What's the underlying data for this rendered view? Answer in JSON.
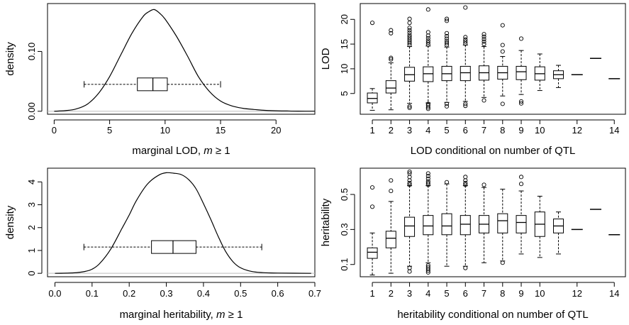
{
  "chart_data": [
    {
      "type": "density+boxplot",
      "xlabel": "marginal LOD, m ≥ 1",
      "xlabel_plain": "marginal LOD, ",
      "xlabel_var": "m",
      "xlabel_cond": " ≥ 1",
      "ylabel": "density",
      "xlim": [
        -0.6,
        23.5
      ],
      "ylim": [
        -0.005,
        0.18
      ],
      "xticks": [
        0,
        5,
        10,
        15,
        20
      ],
      "xtick_labels": [
        "0",
        "5",
        "10",
        "15",
        "20"
      ],
      "yticks": [
        0.0,
        0.1
      ],
      "ytick_labels": [
        "0.00",
        "0.10"
      ],
      "density": {
        "x": [
          0,
          1,
          2,
          3,
          4,
          5,
          6,
          7,
          8,
          8.5,
          9,
          9.5,
          10,
          11,
          12,
          13,
          14,
          15,
          16,
          17,
          18,
          19,
          20,
          21,
          22,
          23.5
        ],
        "y": [
          0,
          0.001,
          0.004,
          0.012,
          0.03,
          0.058,
          0.094,
          0.13,
          0.158,
          0.166,
          0.17,
          0.164,
          0.154,
          0.126,
          0.093,
          0.058,
          0.033,
          0.017,
          0.009,
          0.005,
          0.003,
          0.0015,
          0.0008,
          0.0004,
          0.0002,
          0.0001
        ]
      },
      "box": {
        "whisker_low": 2.7,
        "q1": 7.5,
        "median": 8.9,
        "q3": 10.2,
        "whisker_high": 15.0,
        "y_level": 0.045
      }
    },
    {
      "type": "boxplot",
      "xlabel": "LOD conditional on number of QTL",
      "ylabel": "LOD",
      "ylim": [
        0.8,
        23.2
      ],
      "yticks": [
        5,
        10,
        15,
        20
      ],
      "ytick_labels": [
        "5",
        "10",
        "15",
        "20"
      ],
      "xtick_labels": [
        "1",
        "2",
        "3",
        "4",
        "5",
        "6",
        "7",
        "8",
        "9",
        "10",
        "12",
        "14"
      ],
      "xtick_positions": [
        1,
        2,
        3,
        4,
        5,
        6,
        7,
        8,
        9,
        10,
        12,
        14
      ],
      "groups": [
        {
          "x": 1,
          "whisker_low": 1.6,
          "q1": 3.1,
          "median": 4.0,
          "q3": 5.1,
          "whisker_high": 6.0,
          "outliers": [
            19.3
          ]
        },
        {
          "x": 2,
          "whisker_low": 1.7,
          "q1": 5.1,
          "median": 6.1,
          "q3": 7.6,
          "whisker_high": 11.2,
          "outliers": [
            11.9,
            12.2,
            17.2,
            17.8
          ]
        },
        {
          "x": 3,
          "whisker_low": 3.0,
          "q1": 7.5,
          "median": 8.8,
          "q3": 10.3,
          "whisker_high": 14.5,
          "outliers": [
            2.1,
            2.4,
            14.8,
            15.2,
            15.6,
            16.0,
            16.4,
            16.8,
            17.3,
            17.8,
            18.3,
            19.3,
            20.1
          ]
        },
        {
          "x": 4,
          "whisker_low": 3.1,
          "q1": 7.4,
          "median": 9.0,
          "q3": 10.4,
          "whisker_high": 14.6,
          "outliers": [
            1.9,
            2.2,
            2.6,
            2.9,
            14.9,
            15.3,
            15.7,
            16.2,
            16.7,
            17.4,
            22.0
          ]
        },
        {
          "x": 5,
          "whisker_low": 3.2,
          "q1": 7.6,
          "median": 9.0,
          "q3": 10.5,
          "whisker_high": 14.4,
          "outliers": [
            2.4,
            2.9,
            14.8,
            15.2,
            15.6,
            16.1,
            16.6,
            17.2,
            19.7,
            20.1
          ]
        },
        {
          "x": 6,
          "whisker_low": 3.4,
          "q1": 7.6,
          "median": 9.2,
          "q3": 10.5,
          "whisker_high": 14.8,
          "outliers": [
            2.5,
            2.9,
            15.1,
            15.5,
            15.9,
            16.4,
            22.4
          ]
        },
        {
          "x": 7,
          "whisker_low": 4.2,
          "q1": 7.7,
          "median": 9.2,
          "q3": 10.6,
          "whisker_high": 14.5,
          "outliers": [
            3.6,
            15.0,
            15.5,
            16.0,
            16.5,
            17.0
          ]
        },
        {
          "x": 8,
          "whisker_low": 4.5,
          "q1": 7.9,
          "median": 9.2,
          "q3": 10.5,
          "whisker_high": 12.5,
          "outliers": [
            2.9,
            13.5,
            14.8,
            18.8
          ]
        },
        {
          "x": 9,
          "whisker_low": 4.8,
          "q1": 7.8,
          "median": 9.4,
          "q3": 10.5,
          "whisker_high": 13.7,
          "outliers": [
            3.0,
            3.4,
            16.1
          ]
        },
        {
          "x": 10,
          "whisker_low": 5.6,
          "q1": 7.7,
          "median": 9.0,
          "q3": 10.4,
          "whisker_high": 13.0,
          "outliers": []
        },
        {
          "x": 11,
          "whisker_low": 6.2,
          "q1": 8.0,
          "median": 8.8,
          "q3": 9.6,
          "whisker_high": 10.7,
          "outliers": []
        },
        {
          "x": 12,
          "whisker_low": 8.8,
          "q1": 8.8,
          "median": 8.8,
          "q3": 8.8,
          "whisker_high": 8.8,
          "outliers": []
        },
        {
          "x": 13,
          "whisker_low": 12.1,
          "q1": 12.1,
          "median": 12.1,
          "q3": 12.1,
          "whisker_high": 12.1,
          "outliers": []
        },
        {
          "x": 14,
          "whisker_low": 8.0,
          "q1": 8.0,
          "median": 8.0,
          "q3": 8.0,
          "whisker_high": 8.0,
          "outliers": []
        }
      ]
    },
    {
      "type": "density+boxplot",
      "xlabel": "marginal heritability, m ≥ 1",
      "xlabel_plain": "marginal heritability, ",
      "xlabel_var": "m",
      "xlabel_cond": " ≥ 1",
      "ylabel": "density",
      "xlim": [
        -0.02,
        0.7
      ],
      "ylim": [
        -0.15,
        4.6
      ],
      "xticks": [
        0.0,
        0.1,
        0.2,
        0.3,
        0.4,
        0.5,
        0.6,
        0.7
      ],
      "xtick_labels": [
        "0.0",
        "0.1",
        "0.2",
        "0.3",
        "0.4",
        "0.5",
        "0.6",
        "0.7"
      ],
      "yticks": [
        0,
        1,
        2,
        3,
        4
      ],
      "ytick_labels": [
        "0",
        "1",
        "2",
        "3",
        "4"
      ],
      "density": {
        "x": [
          0,
          0.05,
          0.08,
          0.1,
          0.12,
          0.15,
          0.18,
          0.2,
          0.22,
          0.25,
          0.28,
          0.3,
          0.32,
          0.34,
          0.36,
          0.38,
          0.4,
          0.42,
          0.44,
          0.46,
          0.48,
          0.5,
          0.53,
          0.56,
          0.6,
          0.69
        ],
        "y": [
          0,
          0.02,
          0.08,
          0.18,
          0.42,
          1.05,
          1.95,
          2.55,
          3.2,
          3.92,
          4.3,
          4.4,
          4.38,
          4.32,
          4.1,
          3.7,
          3.05,
          2.35,
          1.6,
          0.95,
          0.5,
          0.24,
          0.08,
          0.03,
          0.01,
          0
        ]
      },
      "box": {
        "whisker_low": 0.078,
        "q1": 0.26,
        "median": 0.318,
        "q3": 0.38,
        "whisker_high": 0.557,
        "y_level": 1.15
      }
    },
    {
      "type": "boxplot",
      "xlabel": "heritability conditional on number of QTL",
      "ylabel": "heritability",
      "ylim": [
        0.03,
        0.65
      ],
      "yticks": [
        0.1,
        0.3,
        0.5
      ],
      "ytick_labels": [
        "0.1",
        "0.3",
        "0.5"
      ],
      "xtick_labels": [
        "1",
        "2",
        "3",
        "4",
        "5",
        "6",
        "7",
        "8",
        "9",
        "10",
        "12",
        "14"
      ],
      "xtick_positions": [
        1,
        2,
        3,
        4,
        5,
        6,
        7,
        8,
        9,
        10,
        12,
        14
      ],
      "groups": [
        {
          "x": 1,
          "whisker_low": 0.04,
          "q1": 0.135,
          "median": 0.17,
          "q3": 0.195,
          "whisker_high": 0.28,
          "outliers": [
            0.43,
            0.54
          ]
        },
        {
          "x": 2,
          "whisker_low": 0.05,
          "q1": 0.195,
          "median": 0.25,
          "q3": 0.29,
          "whisker_high": 0.46,
          "outliers": [
            0.52,
            0.58
          ]
        },
        {
          "x": 3,
          "whisker_low": 0.09,
          "q1": 0.26,
          "median": 0.32,
          "q3": 0.37,
          "whisker_high": 0.55,
          "outliers": [
            0.06,
            0.08,
            0.555,
            0.565,
            0.58,
            0.6,
            0.62,
            0.63
          ]
        },
        {
          "x": 4,
          "whisker_low": 0.11,
          "q1": 0.27,
          "median": 0.32,
          "q3": 0.38,
          "whisker_high": 0.55,
          "outliers": [
            0.055,
            0.065,
            0.075,
            0.085,
            0.095,
            0.555,
            0.565,
            0.575,
            0.59,
            0.605,
            0.62
          ]
        },
        {
          "x": 5,
          "whisker_low": 0.09,
          "q1": 0.27,
          "median": 0.32,
          "q3": 0.39,
          "whisker_high": 0.56,
          "outliers": [
            0.57
          ]
        },
        {
          "x": 6,
          "whisker_low": 0.09,
          "q1": 0.27,
          "median": 0.33,
          "q3": 0.38,
          "whisker_high": 0.55,
          "outliers": [
            0.08,
            0.555,
            0.565,
            0.58,
            0.6
          ]
        },
        {
          "x": 7,
          "whisker_low": 0.11,
          "q1": 0.28,
          "median": 0.33,
          "q3": 0.38,
          "whisker_high": 0.54,
          "outliers": [
            0.555
          ]
        },
        {
          "x": 8,
          "whisker_low": 0.12,
          "q1": 0.28,
          "median": 0.35,
          "q3": 0.39,
          "whisker_high": 0.53,
          "outliers": [
            0.11
          ]
        },
        {
          "x": 9,
          "whisker_low": 0.16,
          "q1": 0.28,
          "median": 0.34,
          "q3": 0.38,
          "whisker_high": 0.52,
          "outliers": [
            0.56,
            0.6
          ]
        },
        {
          "x": 10,
          "whisker_low": 0.14,
          "q1": 0.26,
          "median": 0.33,
          "q3": 0.4,
          "whisker_high": 0.49,
          "outliers": []
        },
        {
          "x": 11,
          "whisker_low": 0.16,
          "q1": 0.28,
          "median": 0.32,
          "q3": 0.36,
          "whisker_high": 0.4,
          "outliers": []
        },
        {
          "x": 12,
          "whisker_low": 0.3,
          "q1": 0.3,
          "median": 0.3,
          "q3": 0.3,
          "whisker_high": 0.3,
          "outliers": []
        },
        {
          "x": 13,
          "whisker_low": 0.415,
          "q1": 0.415,
          "median": 0.415,
          "q3": 0.415,
          "whisker_high": 0.415,
          "outliers": []
        },
        {
          "x": 14,
          "whisker_low": 0.27,
          "q1": 0.27,
          "median": 0.27,
          "q3": 0.27,
          "whisker_high": 0.27,
          "outliers": []
        }
      ]
    }
  ]
}
